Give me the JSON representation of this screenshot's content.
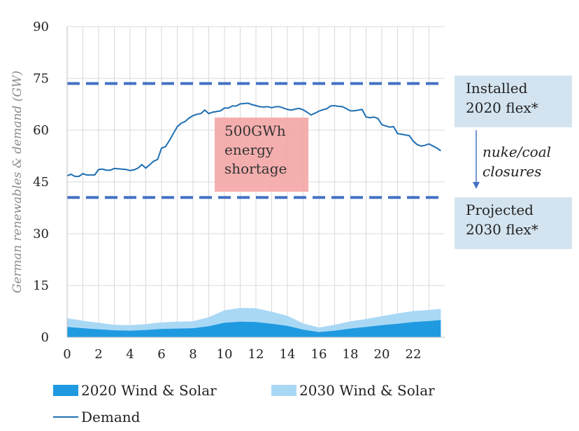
{
  "chart_data": {
    "type": "area",
    "ylabel": "German renewables & demand (GW)",
    "ylim": [
      0,
      90
    ],
    "yticks": [
      0,
      15,
      30,
      45,
      60,
      75,
      90
    ],
    "xlim": [
      0,
      24
    ],
    "xticks": [
      0,
      2,
      4,
      6,
      8,
      10,
      12,
      14,
      16,
      18,
      20,
      22
    ],
    "grid": true,
    "legend_position": "bottom",
    "colors": {
      "wind2020": "#1f9ae0",
      "wind2030": "#a9d8f5",
      "demand": "#1f6fb2",
      "flex": "#4472c4"
    },
    "series": [
      {
        "name": "2020 Wind & Solar",
        "kind": "area",
        "x": [
          0,
          1,
          2,
          3,
          4,
          5,
          6,
          7,
          8,
          9,
          10,
          11,
          12,
          13,
          14,
          15,
          16,
          17,
          18,
          19,
          20,
          21,
          22,
          23,
          23.75
        ],
        "values": [
          3.0,
          2.6,
          2.3,
          2.0,
          1.9,
          2.1,
          2.4,
          2.5,
          2.6,
          3.2,
          4.2,
          4.5,
          4.4,
          3.9,
          3.3,
          2.2,
          1.5,
          1.9,
          2.5,
          3.0,
          3.5,
          3.9,
          4.4,
          4.7,
          5.0
        ]
      },
      {
        "name": "2030 Wind & Solar",
        "kind": "area",
        "x": [
          0,
          1,
          2,
          3,
          4,
          5,
          6,
          7,
          8,
          9,
          10,
          11,
          12,
          13,
          14,
          15,
          16,
          17,
          18,
          19,
          20,
          21,
          22,
          23,
          23.75
        ],
        "values": [
          5.5,
          4.8,
          4.2,
          3.6,
          3.5,
          3.8,
          4.3,
          4.5,
          4.6,
          5.8,
          7.8,
          8.5,
          8.4,
          7.4,
          6.2,
          4.0,
          2.8,
          3.6,
          4.6,
          5.3,
          6.1,
          6.9,
          7.6,
          7.9,
          8.2
        ]
      },
      {
        "name": "Demand",
        "kind": "line",
        "x": [
          0,
          0.25,
          0.5,
          0.75,
          1,
          1.25,
          1.5,
          1.75,
          2,
          2.25,
          2.5,
          2.75,
          3,
          3.25,
          3.5,
          3.75,
          4,
          4.25,
          4.5,
          4.75,
          5,
          5.25,
          5.5,
          5.75,
          6,
          6.25,
          6.5,
          6.75,
          7,
          7.25,
          7.5,
          7.75,
          8,
          8.25,
          8.5,
          8.75,
          9,
          9.25,
          9.5,
          9.75,
          10,
          10.25,
          10.5,
          10.75,
          11,
          11.25,
          11.5,
          11.75,
          12,
          12.25,
          12.5,
          12.75,
          13,
          13.25,
          13.5,
          13.75,
          14,
          14.25,
          14.5,
          14.75,
          15,
          15.25,
          15.5,
          15.75,
          16,
          16.25,
          16.5,
          16.75,
          17,
          17.25,
          17.5,
          17.75,
          18,
          18.25,
          18.5,
          18.75,
          19,
          19.25,
          19.5,
          19.75,
          20,
          20.25,
          20.5,
          20.75,
          21,
          21.25,
          21.5,
          21.75,
          22,
          22.25,
          22.5,
          22.75,
          23,
          23.25,
          23.5,
          23.75
        ],
        "values": [
          46.8,
          47.2,
          46.6,
          46.6,
          47.4,
          47.0,
          47.0,
          47.0,
          48.6,
          48.7,
          48.4,
          48.4,
          48.9,
          48.8,
          48.7,
          48.6,
          48.3,
          48.5,
          49.0,
          50.0,
          49.0,
          50.0,
          51.0,
          51.5,
          54.8,
          55.2,
          57.0,
          59.0,
          61.0,
          62.0,
          62.5,
          63.5,
          64.2,
          64.6,
          64.8,
          65.8,
          64.8,
          65.2,
          65.4,
          65.6,
          66.4,
          66.4,
          67.0,
          67.0,
          67.6,
          67.7,
          67.8,
          67.4,
          67.1,
          66.8,
          66.7,
          66.8,
          66.5,
          66.8,
          66.8,
          66.4,
          66.0,
          65.8,
          66.1,
          66.3,
          65.9,
          65.2,
          64.4,
          64.9,
          65.5,
          65.9,
          66.2,
          67.0,
          67.1,
          66.9,
          66.8,
          66.2,
          65.6,
          65.6,
          65.8,
          66.0,
          63.8,
          63.6,
          63.8,
          63.4,
          61.6,
          61.2,
          60.9,
          61.0,
          59.0,
          58.8,
          58.6,
          58.4,
          56.8,
          55.8,
          55.4,
          55.6,
          56.0,
          55.4,
          54.8,
          54.0
        ]
      }
    ],
    "reference_lines": [
      {
        "label": "Installed 2020 flex*",
        "value": 73.5
      },
      {
        "label": "Projected 2030 flex*",
        "value": 40.5
      }
    ],
    "annotations": {
      "installed": "Installed\n2020 flex*",
      "projected": "Projected\n2030 flex*",
      "arrow_text": "nuke/coal\nclosures",
      "shortage": "500GWh\nenergy\nshortage"
    }
  },
  "legend": {
    "wind2020": "2020 Wind & Solar",
    "wind2030": "2030 Wind & Solar",
    "demand": "Demand"
  }
}
